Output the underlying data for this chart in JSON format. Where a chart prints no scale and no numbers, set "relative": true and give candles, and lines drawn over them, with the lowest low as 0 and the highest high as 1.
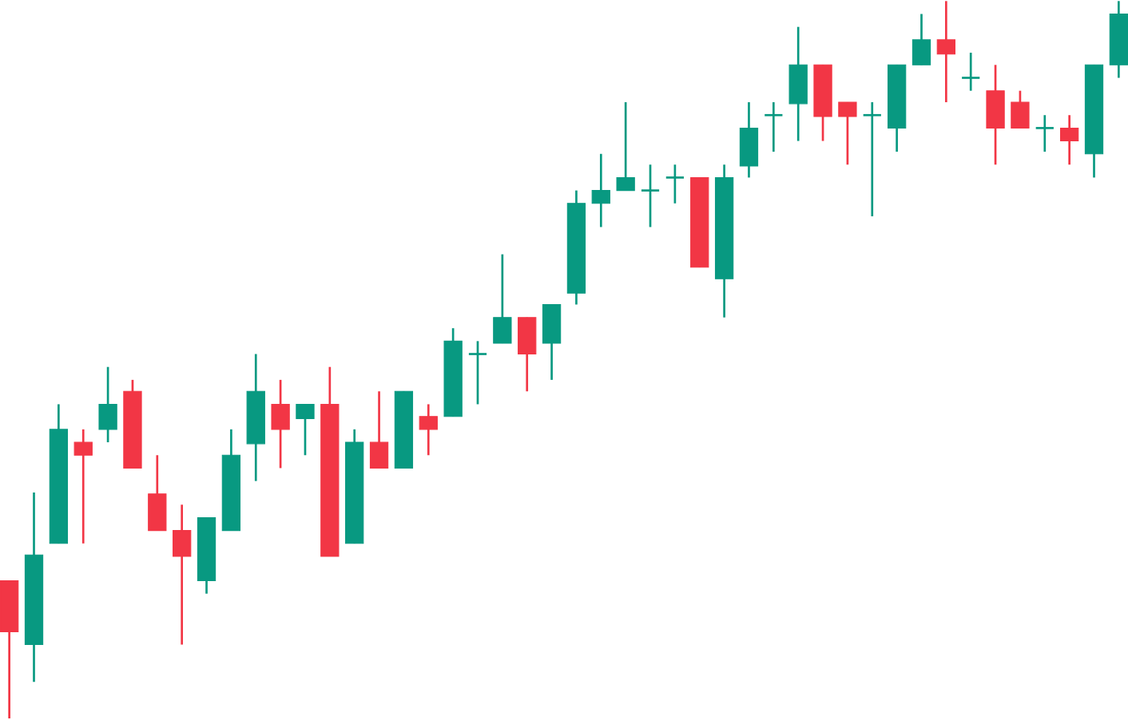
{
  "chart_data": {
    "type": "candlestick",
    "relative": true,
    "categories": [
      null,
      null,
      null,
      null,
      null,
      null,
      null,
      null,
      null,
      null,
      null,
      null,
      null,
      null,
      null,
      null,
      null,
      null,
      null,
      null,
      null,
      null,
      null,
      null,
      null,
      null,
      null,
      null,
      null,
      null,
      null,
      null,
      null,
      null,
      null,
      null,
      null,
      null,
      null,
      null,
      null,
      null,
      null,
      null,
      null,
      null
    ],
    "ohlc": [
      [
        0.192,
        0.192,
        0,
        0.121
      ],
      [
        0.103,
        0.315,
        0.051,
        0.228
      ],
      [
        0.244,
        0.438,
        0.244,
        0.403
      ],
      [
        0.385,
        0.403,
        0.244,
        0.367
      ],
      [
        0.403,
        0.49,
        0.385,
        0.438
      ],
      [
        0.456,
        0.472,
        0.349,
        0.349
      ],
      [
        0.313,
        0.367,
        0.262,
        0.262
      ],
      [
        0.262,
        0.298,
        0.103,
        0.226
      ],
      [
        0.192,
        0.28,
        0.174,
        0.28
      ],
      [
        0.262,
        0.403,
        0.262,
        0.367
      ],
      [
        0.383,
        0.508,
        0.331,
        0.456
      ],
      [
        0.438,
        0.472,
        0.349,
        0.403
      ],
      [
        0.418,
        0.438,
        0.367,
        0.438
      ],
      [
        0.438,
        0.49,
        0.226,
        0.226
      ],
      [
        0.244,
        0.403,
        0.244,
        0.385
      ],
      [
        0.385,
        0.456,
        0.349,
        0.349
      ],
      [
        0.349,
        0.456,
        0.349,
        0.456
      ],
      [
        0.421,
        0.438,
        0.367,
        0.403
      ],
      [
        0.421,
        0.544,
        0.421,
        0.526
      ],
      [
        0.508,
        0.526,
        0.438,
        0.508
      ],
      [
        0.523,
        0.647,
        0.523,
        0.559
      ],
      [
        0.559,
        0.559,
        0.456,
        0.508
      ],
      [
        0.523,
        0.577,
        0.472,
        0.577
      ],
      [
        0.593,
        0.736,
        0.577,
        0.718
      ],
      [
        0.718,
        0.787,
        0.685,
        0.736
      ],
      [
        0.736,
        0.859,
        0.736,
        0.754
      ],
      [
        0.736,
        0.772,
        0.685,
        0.736
      ],
      [
        0.754,
        0.772,
        0.718,
        0.754
      ],
      [
        0.754,
        0.754,
        0.629,
        0.629
      ],
      [
        0.613,
        0.772,
        0.559,
        0.754
      ],
      [
        0.77,
        0.859,
        0.754,
        0.823
      ],
      [
        0.841,
        0.859,
        0.79,
        0.841
      ],
      [
        0.857,
        0.964,
        0.805,
        0.911
      ],
      [
        0.911,
        0.911,
        0.805,
        0.839
      ],
      [
        0.859,
        0.859,
        0.772,
        0.839
      ],
      [
        0.841,
        0.859,
        0.7,
        0.841
      ],
      [
        0.823,
        0.911,
        0.79,
        0.911
      ],
      [
        0.911,
        0.982,
        0.911,
        0.946
      ],
      [
        0.946,
        1,
        0.859,
        0.926
      ],
      [
        0.893,
        0.928,
        0.875,
        0.893
      ],
      [
        0.875,
        0.911,
        0.772,
        0.823
      ],
      [
        0.859,
        0.875,
        0.823,
        0.823
      ],
      [
        0.823,
        0.841,
        0.79,
        0.823
      ],
      [
        0.823,
        0.841,
        0.772,
        0.805
      ],
      [
        0.787,
        0.911,
        0.754,
        0.911
      ],
      [
        0.911,
        1,
        0.893,
        0.982
      ]
    ],
    "colors": [
      "#f23645",
      "#089981",
      "#089981",
      "#f23645",
      "#089981",
      "#f23645",
      "#f23645",
      "#f23645",
      "#089981",
      "#089981",
      "#089981",
      "#f23645",
      "#089981",
      "#f23645",
      "#089981",
      "#f23645",
      "#089981",
      "#f23645",
      "#089981",
      "#089981",
      "#089981",
      "#f23645",
      "#089981",
      "#089981",
      "#089981",
      "#089981",
      "#089981",
      "#089981",
      "#f23645",
      "#089981",
      "#089981",
      "#089981",
      "#089981",
      "#f23645",
      "#f23645",
      "#089981",
      "#089981",
      "#089981",
      "#f23645",
      "#089981",
      "#f23645",
      "#f23645",
      "#089981",
      "#f23645",
      "#089981",
      "#089981"
    ]
  }
}
